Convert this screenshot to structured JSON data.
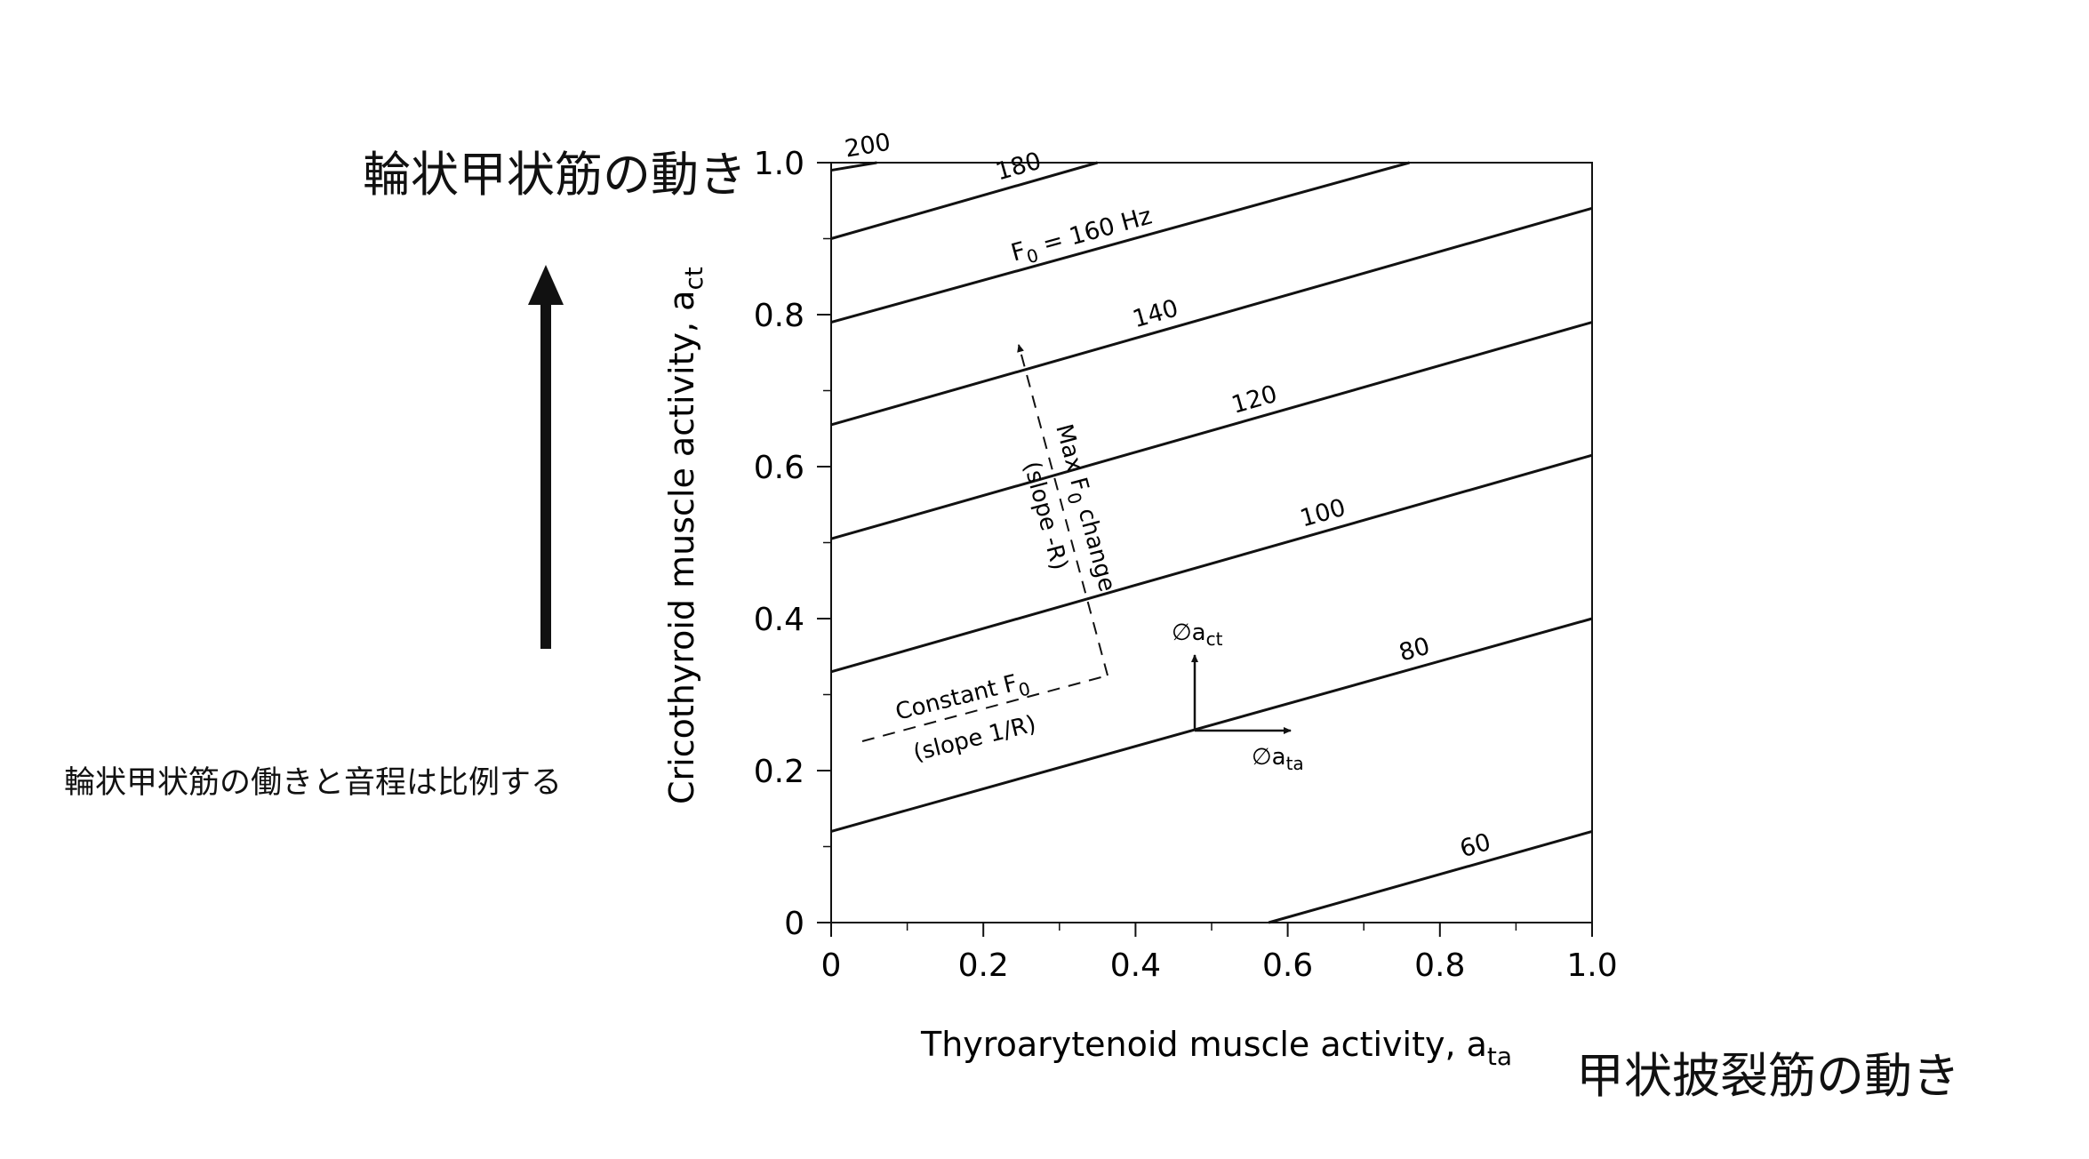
{
  "annotations": {
    "ct_label": "輪状甲状筋の動き",
    "ta_label": "甲状披裂筋の動き",
    "note": "輪状甲状筋の働きと音程は比例する"
  },
  "chart_data": {
    "type": "line",
    "title": "",
    "xlabel": "Thyroarytenoid muscle activity, a",
    "xlabel_sub": "ta",
    "ylabel": "Cricothyroid muscle activity, a",
    "ylabel_sub": "ct",
    "xlim": [
      0,
      1.0
    ],
    "ylim": [
      0,
      1.0
    ],
    "x_ticks": [
      "0",
      "0.2",
      "0.4",
      "0.6",
      "0.8",
      "1.0"
    ],
    "y_ticks": [
      "0",
      "0.2",
      "0.4",
      "0.6",
      "0.8",
      "1.0"
    ],
    "grid": false,
    "series": [
      {
        "name": "200",
        "label": "200",
        "x": [
          0,
          0.06
        ],
        "y": [
          0.99,
          1.0
        ]
      },
      {
        "name": "180",
        "label": "180",
        "x": [
          0,
          0.35
        ],
        "y": [
          0.9,
          1.0
        ]
      },
      {
        "name": "160",
        "label": "F",
        "label_sub": "0",
        "label_suffix": " = 160 Hz",
        "x": [
          0,
          0.76
        ],
        "y": [
          0.79,
          1.0
        ]
      },
      {
        "name": "140",
        "label": "140",
        "x": [
          0,
          1.0
        ],
        "y": [
          0.655,
          0.94
        ]
      },
      {
        "name": "120",
        "label": "120",
        "x": [
          0,
          1.0
        ],
        "y": [
          0.505,
          0.79
        ]
      },
      {
        "name": "100",
        "label": "100",
        "x": [
          0,
          1.0
        ],
        "y": [
          0.33,
          0.615
        ]
      },
      {
        "name": "80",
        "label": "80",
        "x": [
          0,
          1.0
        ],
        "y": [
          0.12,
          0.4
        ]
      },
      {
        "name": "60",
        "label": "60",
        "x": [
          0.575,
          1.0
        ],
        "y": [
          0.0,
          0.12
        ]
      }
    ],
    "annotations": {
      "max_change_line1": "Max F",
      "max_change_sub": "0",
      "max_change_suffix": " change",
      "max_change_line2": "(slope -R)",
      "constant_line1": "Constant F",
      "constant_sub": "0",
      "constant_line2": "(slope 1/R)",
      "d_act": "∅a",
      "d_act_sub": "ct",
      "d_ata": "∅a",
      "d_ata_sub": "ta"
    }
  }
}
